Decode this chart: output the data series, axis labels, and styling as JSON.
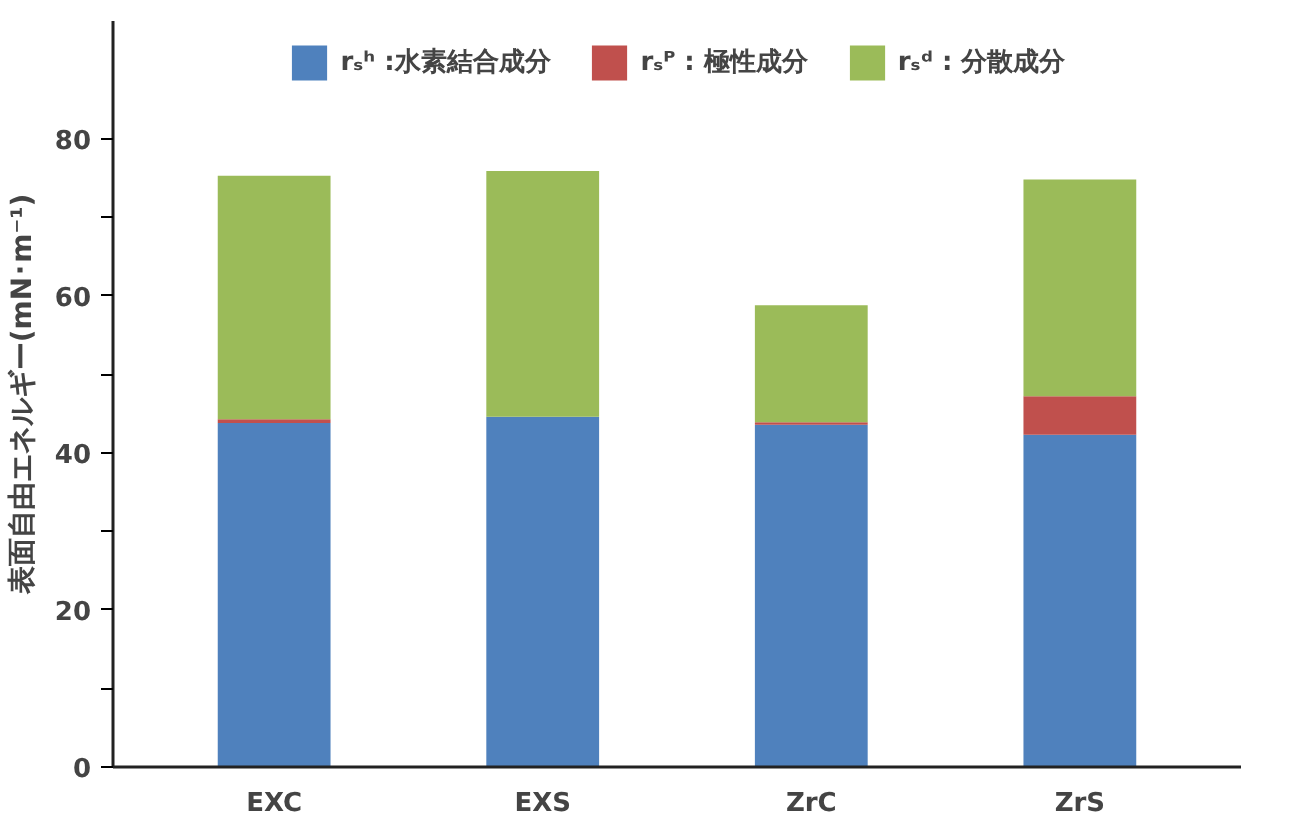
{
  "chart_data": {
    "type": "bar",
    "stacked": true,
    "ylabel": "表面自由エネルギー(mN･m⁻¹)",
    "categories": [
      "EXC",
      "EXS",
      "ZrC",
      "ZrS"
    ],
    "series": [
      {
        "name": "rₛʰ :水素結合成分",
        "color": "#4f81bd",
        "values": [
          43.8,
          44.6,
          43.6,
          42.3
        ]
      },
      {
        "name": "rₛᴾ : 極性成分",
        "color": "#c0504d",
        "values": [
          0.5,
          0,
          0.3,
          4.9
        ]
      },
      {
        "name": "rₛᵈ : 分散成分",
        "color": "#9bbb59",
        "values": [
          31.0,
          31.3,
          14.9,
          27.6
        ]
      }
    ],
    "ylim": [
      0,
      95
    ],
    "yticks": [
      0,
      {
        "value": 10,
        "label": null
      },
      20,
      {
        "value": 30,
        "label": null
      },
      40,
      {
        "value": 50,
        "label": null
      },
      60,
      {
        "value": 70,
        "label": null
      },
      80
    ],
    "grid": false,
    "legend": "top"
  }
}
